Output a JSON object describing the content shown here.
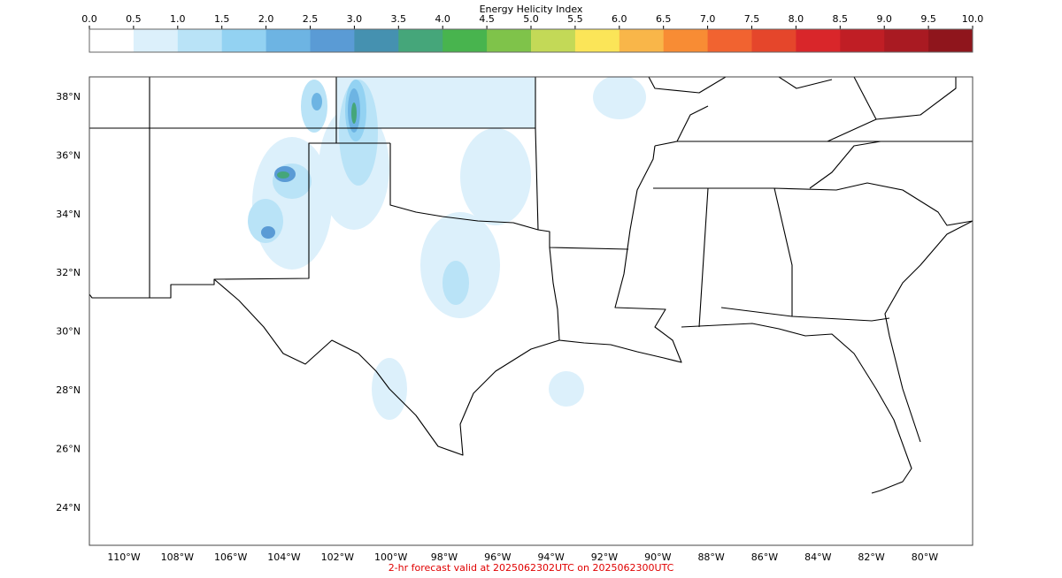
{
  "colorbar": {
    "title": "Energy Helicity Index",
    "ticks": [
      {
        "value": 0,
        "label": "0.0"
      },
      {
        "value": 0.5,
        "label": "0.5"
      },
      {
        "value": 1,
        "label": "1.0"
      },
      {
        "value": 1.5,
        "label": "1.5"
      },
      {
        "value": 2,
        "label": "2.0"
      },
      {
        "value": 2.5,
        "label": "2.5"
      },
      {
        "value": 3,
        "label": "3.0"
      },
      {
        "value": 3.5,
        "label": "3.5"
      },
      {
        "value": 4,
        "label": "4.0"
      },
      {
        "value": 4.5,
        "label": "4.5"
      },
      {
        "value": 5,
        "label": "5.0"
      },
      {
        "value": 5.5,
        "label": "5.5"
      },
      {
        "value": 6,
        "label": "6.0"
      },
      {
        "value": 6.5,
        "label": "6.5"
      },
      {
        "value": 7,
        "label": "7.0"
      },
      {
        "value": 7.5,
        "label": "7.5"
      },
      {
        "value": 8,
        "label": "8.0"
      },
      {
        "value": 8.5,
        "label": "8.5"
      },
      {
        "value": 9,
        "label": "9.0"
      },
      {
        "value": 9.5,
        "label": "9.5"
      },
      {
        "value": 10,
        "label": "10.0"
      }
    ],
    "colors": [
      "#ffffff",
      "#dcf0fb",
      "#b9e3f7",
      "#93d2f2",
      "#6db4e3",
      "#5a9bd5",
      "#4591b0",
      "#45a67a",
      "#48b44e",
      "#7fc34a",
      "#c3d957",
      "#fbe558",
      "#f9b649",
      "#f88c34",
      "#f16330",
      "#e5462b",
      "#d9262a",
      "#c01e25",
      "#a91a22",
      "#8f151c"
    ]
  },
  "map": {
    "lat_labels": [
      "38°N",
      "36°N",
      "34°N",
      "32°N",
      "30°N",
      "28°N",
      "26°N",
      "24°N"
    ],
    "lon_labels": [
      "110°W",
      "108°W",
      "106°W",
      "104°W",
      "102°W",
      "100°W",
      "98°W",
      "96°W",
      "94°W",
      "92°W",
      "90°W",
      "88°W",
      "86°W",
      "84°W",
      "82°W",
      "80°W"
    ]
  },
  "footer": "2-hr forecast valid at 2025062302UTC on 2025062300UTC"
}
